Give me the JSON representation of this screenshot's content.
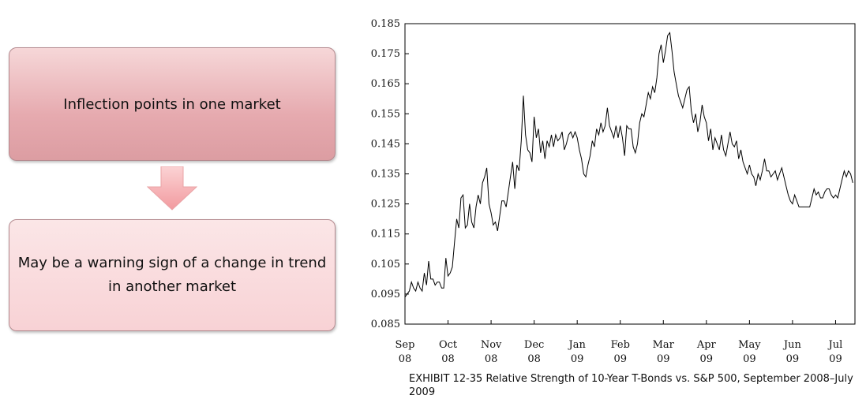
{
  "flow": {
    "top_text": "Inflection points in one market",
    "bottom_text": "May be a warning sign of a change in trend in another market",
    "top_color": "#e6aaaf",
    "bottom_color": "#f8d2d5",
    "arrow_color": "#f4a8ab",
    "arrow_icon": "down-arrow-icon"
  },
  "caption": "EXHIBIT 12-35 Relative Strength of 10-Year T-Bonds vs. S&P 500, September 2008–July 2009",
  "chart_data": {
    "type": "line",
    "title": "",
    "xlabel": "",
    "ylabel": "",
    "ylim": [
      0.085,
      0.185
    ],
    "yticks": [
      "0.185",
      "0.175",
      "0.165",
      "0.155",
      "0.145",
      "0.135",
      "0.125",
      "0.115",
      "0.105",
      "0.095",
      "0.085"
    ],
    "xticks": [
      {
        "month": "Sep",
        "year": "08",
        "x": 0
      },
      {
        "month": "Oct",
        "year": "08",
        "x": 1
      },
      {
        "month": "Nov",
        "year": "08",
        "x": 2
      },
      {
        "month": "Dec",
        "year": "08",
        "x": 3
      },
      {
        "month": "Jan",
        "year": "09",
        "x": 4
      },
      {
        "month": "Feb",
        "year": "09",
        "x": 5
      },
      {
        "month": "Mar",
        "year": "09",
        "x": 6
      },
      {
        "month": "Apr",
        "year": "09",
        "x": 7
      },
      {
        "month": "May",
        "year": "09",
        "x": 8
      },
      {
        "month": "Jun",
        "year": "09",
        "x": 9
      },
      {
        "month": "Jul",
        "year": "09",
        "x": 10
      }
    ],
    "xlim": [
      0,
      10.45
    ],
    "grid": false,
    "series": [
      {
        "color": "#000000",
        "points": [
          [
            0.0,
            0.094
          ],
          [
            0.05,
            0.095
          ],
          [
            0.1,
            0.096
          ],
          [
            0.15,
            0.099
          ],
          [
            0.2,
            0.097
          ],
          [
            0.25,
            0.096
          ],
          [
            0.3,
            0.099
          ],
          [
            0.35,
            0.097
          ],
          [
            0.4,
            0.096
          ],
          [
            0.45,
            0.102
          ],
          [
            0.5,
            0.098
          ],
          [
            0.55,
            0.106
          ],
          [
            0.6,
            0.1
          ],
          [
            0.65,
            0.1
          ],
          [
            0.7,
            0.098
          ],
          [
            0.75,
            0.099
          ],
          [
            0.8,
            0.099
          ],
          [
            0.85,
            0.097
          ],
          [
            0.9,
            0.097
          ],
          [
            0.95,
            0.107
          ],
          [
            1.0,
            0.101
          ],
          [
            1.05,
            0.102
          ],
          [
            1.1,
            0.104
          ],
          [
            1.15,
            0.112
          ],
          [
            1.2,
            0.12
          ],
          [
            1.25,
            0.117
          ],
          [
            1.3,
            0.127
          ],
          [
            1.35,
            0.128
          ],
          [
            1.4,
            0.117
          ],
          [
            1.45,
            0.118
          ],
          [
            1.5,
            0.125
          ],
          [
            1.55,
            0.119
          ],
          [
            1.6,
            0.117
          ],
          [
            1.65,
            0.124
          ],
          [
            1.7,
            0.128
          ],
          [
            1.75,
            0.125
          ],
          [
            1.8,
            0.132
          ],
          [
            1.85,
            0.134
          ],
          [
            1.9,
            0.137
          ],
          [
            1.95,
            0.125
          ],
          [
            2.0,
            0.122
          ],
          [
            2.05,
            0.118
          ],
          [
            2.1,
            0.119
          ],
          [
            2.15,
            0.116
          ],
          [
            2.2,
            0.121
          ],
          [
            2.25,
            0.126
          ],
          [
            2.3,
            0.126
          ],
          [
            2.35,
            0.124
          ],
          [
            2.4,
            0.129
          ],
          [
            2.45,
            0.134
          ],
          [
            2.5,
            0.139
          ],
          [
            2.55,
            0.13
          ],
          [
            2.6,
            0.138
          ],
          [
            2.65,
            0.136
          ],
          [
            2.7,
            0.146
          ],
          [
            2.75,
            0.161
          ],
          [
            2.8,
            0.148
          ],
          [
            2.85,
            0.143
          ],
          [
            2.9,
            0.142
          ],
          [
            2.95,
            0.139
          ],
          [
            3.0,
            0.154
          ],
          [
            3.05,
            0.147
          ],
          [
            3.1,
            0.15
          ],
          [
            3.15,
            0.142
          ],
          [
            3.2,
            0.146
          ],
          [
            3.25,
            0.14
          ],
          [
            3.3,
            0.146
          ],
          [
            3.35,
            0.144
          ],
          [
            3.4,
            0.148
          ],
          [
            3.45,
            0.144
          ],
          [
            3.5,
            0.148
          ],
          [
            3.55,
            0.146
          ],
          [
            3.6,
            0.147
          ],
          [
            3.65,
            0.149
          ],
          [
            3.7,
            0.143
          ],
          [
            3.75,
            0.145
          ],
          [
            3.8,
            0.148
          ],
          [
            3.85,
            0.149
          ],
          [
            3.9,
            0.147
          ],
          [
            3.95,
            0.149
          ],
          [
            4.0,
            0.147
          ],
          [
            4.05,
            0.143
          ],
          [
            4.1,
            0.14
          ],
          [
            4.15,
            0.135
          ],
          [
            4.2,
            0.134
          ],
          [
            4.25,
            0.138
          ],
          [
            4.3,
            0.141
          ],
          [
            4.35,
            0.146
          ],
          [
            4.4,
            0.144
          ],
          [
            4.45,
            0.15
          ],
          [
            4.5,
            0.148
          ],
          [
            4.55,
            0.152
          ],
          [
            4.6,
            0.149
          ],
          [
            4.65,
            0.151
          ],
          [
            4.7,
            0.157
          ],
          [
            4.75,
            0.151
          ],
          [
            4.8,
            0.149
          ],
          [
            4.85,
            0.147
          ],
          [
            4.9,
            0.151
          ],
          [
            4.95,
            0.147
          ],
          [
            5.0,
            0.151
          ],
          [
            5.05,
            0.147
          ],
          [
            5.1,
            0.141
          ],
          [
            5.15,
            0.151
          ],
          [
            5.2,
            0.15
          ],
          [
            5.25,
            0.15
          ],
          [
            5.3,
            0.144
          ],
          [
            5.35,
            0.142
          ],
          [
            5.4,
            0.145
          ],
          [
            5.45,
            0.152
          ],
          [
            5.5,
            0.155
          ],
          [
            5.55,
            0.154
          ],
          [
            5.6,
            0.158
          ],
          [
            5.65,
            0.162
          ],
          [
            5.7,
            0.16
          ],
          [
            5.75,
            0.164
          ],
          [
            5.8,
            0.162
          ],
          [
            5.85,
            0.167
          ],
          [
            5.9,
            0.175
          ],
          [
            5.95,
            0.178
          ],
          [
            6.0,
            0.172
          ],
          [
            6.05,
            0.176
          ],
          [
            6.1,
            0.181
          ],
          [
            6.15,
            0.182
          ],
          [
            6.2,
            0.176
          ],
          [
            6.25,
            0.169
          ],
          [
            6.3,
            0.165
          ],
          [
            6.35,
            0.161
          ],
          [
            6.4,
            0.159
          ],
          [
            6.45,
            0.157
          ],
          [
            6.5,
            0.16
          ],
          [
            6.55,
            0.163
          ],
          [
            6.6,
            0.164
          ],
          [
            6.65,
            0.156
          ],
          [
            6.7,
            0.152
          ],
          [
            6.75,
            0.155
          ],
          [
            6.8,
            0.149
          ],
          [
            6.85,
            0.152
          ],
          [
            6.9,
            0.158
          ],
          [
            6.95,
            0.154
          ],
          [
            7.0,
            0.152
          ],
          [
            7.05,
            0.146
          ],
          [
            7.1,
            0.15
          ],
          [
            7.15,
            0.143
          ],
          [
            7.2,
            0.147
          ],
          [
            7.25,
            0.145
          ],
          [
            7.3,
            0.143
          ],
          [
            7.35,
            0.148
          ],
          [
            7.4,
            0.143
          ],
          [
            7.45,
            0.141
          ],
          [
            7.5,
            0.145
          ],
          [
            7.55,
            0.149
          ],
          [
            7.6,
            0.145
          ],
          [
            7.65,
            0.144
          ],
          [
            7.7,
            0.146
          ],
          [
            7.75,
            0.14
          ],
          [
            7.8,
            0.143
          ],
          [
            7.85,
            0.139
          ],
          [
            7.9,
            0.137
          ],
          [
            7.95,
            0.135
          ],
          [
            8.0,
            0.138
          ],
          [
            8.05,
            0.135
          ],
          [
            8.1,
            0.134
          ],
          [
            8.15,
            0.131
          ],
          [
            8.2,
            0.135
          ],
          [
            8.25,
            0.133
          ],
          [
            8.3,
            0.136
          ],
          [
            8.35,
            0.14
          ],
          [
            8.4,
            0.136
          ],
          [
            8.45,
            0.136
          ],
          [
            8.5,
            0.134
          ],
          [
            8.55,
            0.135
          ],
          [
            8.6,
            0.136
          ],
          [
            8.65,
            0.133
          ],
          [
            8.7,
            0.135
          ],
          [
            8.75,
            0.137
          ],
          [
            8.8,
            0.134
          ],
          [
            8.85,
            0.131
          ],
          [
            8.9,
            0.128
          ],
          [
            8.95,
            0.126
          ],
          [
            9.0,
            0.125
          ],
          [
            9.05,
            0.128
          ],
          [
            9.1,
            0.126
          ],
          [
            9.15,
            0.124
          ],
          [
            9.2,
            0.124
          ],
          [
            9.25,
            0.124
          ],
          [
            9.3,
            0.124
          ],
          [
            9.35,
            0.124
          ],
          [
            9.4,
            0.124
          ],
          [
            9.45,
            0.127
          ],
          [
            9.5,
            0.13
          ],
          [
            9.55,
            0.128
          ],
          [
            9.6,
            0.129
          ],
          [
            9.65,
            0.127
          ],
          [
            9.7,
            0.127
          ],
          [
            9.75,
            0.129
          ],
          [
            9.8,
            0.13
          ],
          [
            9.85,
            0.13
          ],
          [
            9.9,
            0.128
          ],
          [
            9.95,
            0.127
          ],
          [
            10.0,
            0.128
          ],
          [
            10.05,
            0.127
          ],
          [
            10.1,
            0.13
          ],
          [
            10.15,
            0.133
          ],
          [
            10.2,
            0.136
          ],
          [
            10.25,
            0.134
          ],
          [
            10.3,
            0.136
          ],
          [
            10.35,
            0.135
          ],
          [
            10.4,
            0.132
          ]
        ]
      }
    ]
  }
}
